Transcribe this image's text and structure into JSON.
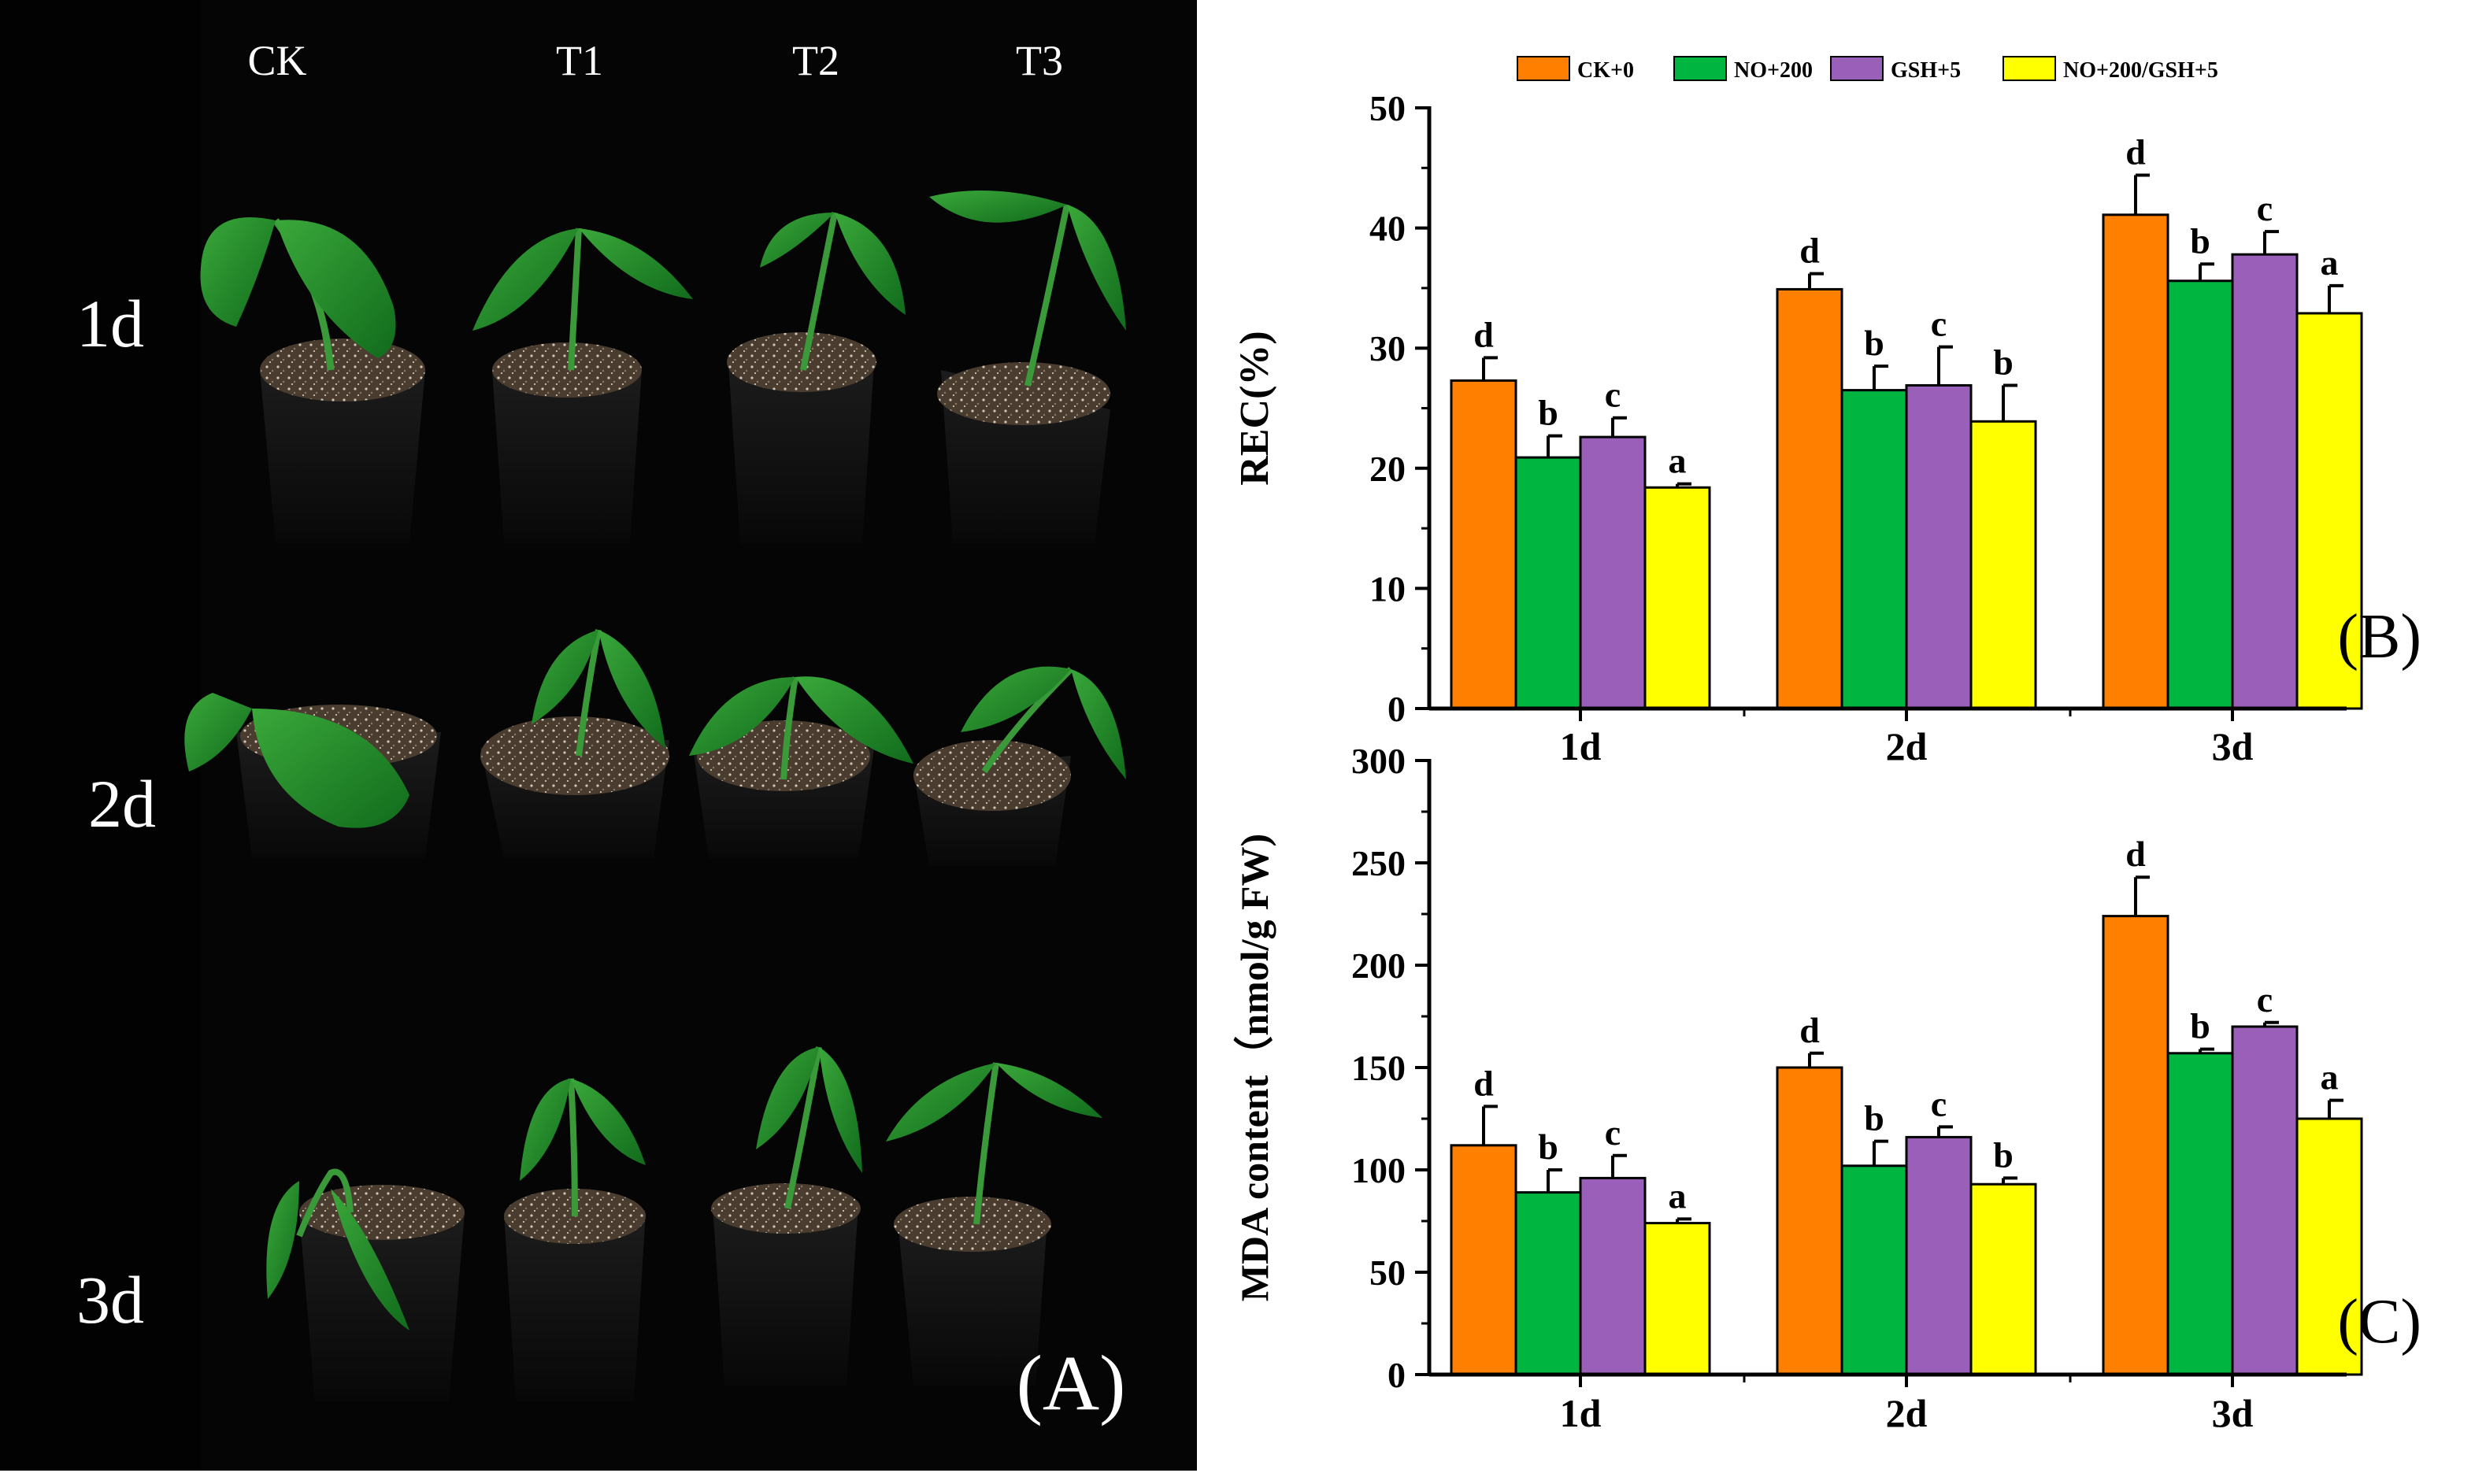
{
  "photo_panel": {
    "treatments": [
      "CK",
      "T1",
      "T2",
      "T3"
    ],
    "days": [
      "1d",
      "2d",
      "3d"
    ],
    "panel_label": "(A)"
  },
  "colors": {
    "CK+0": "#ff7f00",
    "NO+200": "#00b540",
    "GSH+5": "#9a5fb8",
    "NO+200/GSH+5": "#ffff00"
  },
  "chart_data": [
    {
      "id": "rec",
      "type": "bar",
      "panel_label": "(B)",
      "title": "",
      "xlabel": "",
      "ylabel": "REC(%)",
      "ylim": [
        0,
        50
      ],
      "yticks": [
        0,
        10,
        20,
        30,
        40,
        50
      ],
      "categories": [
        "1d",
        "2d",
        "3d"
      ],
      "legend": [
        "CK+0",
        "NO+200",
        "GSH+5",
        "NO+200/GSH+5"
      ],
      "series": [
        {
          "name": "CK+0",
          "values": [
            27.3,
            34.9,
            41.1
          ],
          "errors": [
            1.9,
            1.3,
            3.3
          ],
          "letters": [
            "d",
            "d",
            "d"
          ]
        },
        {
          "name": "NO+200",
          "values": [
            20.9,
            26.5,
            35.6
          ],
          "errors": [
            1.8,
            2.0,
            1.4
          ],
          "letters": [
            "b",
            "b",
            "b"
          ]
        },
        {
          "name": "GSH+5",
          "values": [
            22.6,
            26.9,
            37.8
          ],
          "errors": [
            1.6,
            3.2,
            1.9
          ],
          "letters": [
            "c",
            "c",
            "c"
          ]
        },
        {
          "name": "NO+200/GSH+5",
          "values": [
            18.4,
            23.9,
            32.9
          ],
          "errors": [
            0.3,
            3.0,
            2.3
          ],
          "letters": [
            "a",
            "b",
            "a"
          ]
        }
      ]
    },
    {
      "id": "mda",
      "type": "bar",
      "panel_label": "(C)",
      "title": "",
      "xlabel": "",
      "ylabel": "MDA content（nmol/g FW)",
      "ylim": [
        0,
        300
      ],
      "yticks": [
        0,
        50,
        100,
        150,
        200,
        250,
        300
      ],
      "categories": [
        "1d",
        "2d",
        "3d"
      ],
      "series": [
        {
          "name": "CK+0",
          "values": [
            112,
            150,
            224
          ],
          "errors": [
            19,
            7,
            19
          ],
          "letters": [
            "d",
            "d",
            "d"
          ]
        },
        {
          "name": "NO+200",
          "values": [
            89,
            102,
            157
          ],
          "errors": [
            11,
            12,
            2
          ],
          "letters": [
            "b",
            "b",
            "b"
          ]
        },
        {
          "name": "GSH+5",
          "values": [
            96,
            116,
            170
          ],
          "errors": [
            11,
            5,
            2
          ],
          "letters": [
            "c",
            "c",
            "c"
          ]
        },
        {
          "name": "NO+200/GSH+5",
          "values": [
            74,
            93,
            125
          ],
          "errors": [
            2,
            3,
            9
          ],
          "letters": [
            "a",
            "b",
            "a"
          ]
        }
      ]
    }
  ]
}
